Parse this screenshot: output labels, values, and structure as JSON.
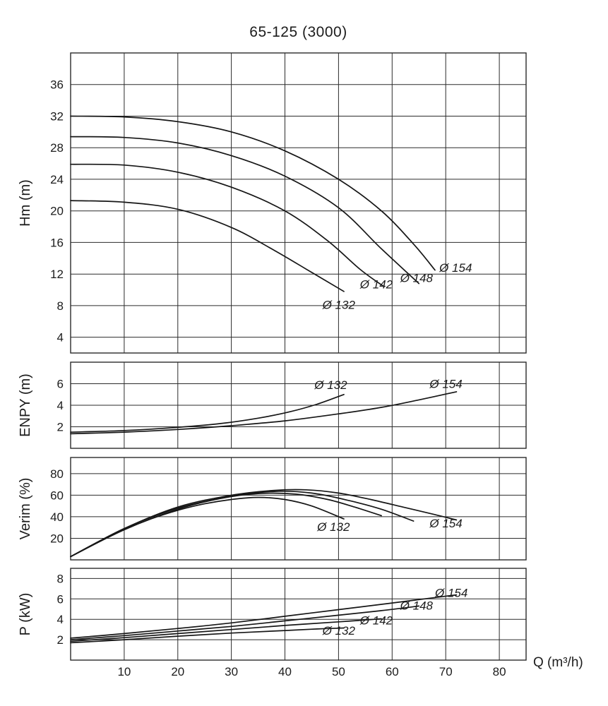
{
  "title": "65-125 (3000)",
  "x_axis": {
    "unit_label": "Q (m³/h)",
    "ticks": [
      10,
      20,
      30,
      40,
      50,
      60,
      70,
      80
    ],
    "range": [
      0,
      85
    ]
  },
  "style": {
    "background": "#ffffff",
    "curve_color": "#161616",
    "grid_color": "#2b2b2b",
    "text_color": "#1c1c1c"
  },
  "chart_data": [
    {
      "id": "head",
      "type": "line",
      "ylabel": "Hm (m)",
      "ylim": [
        2,
        40
      ],
      "yticks": [
        4,
        8,
        12,
        16,
        20,
        24,
        28,
        32,
        36
      ],
      "grid": true,
      "series": [
        {
          "name": "Ø 154",
          "points": [
            [
              0,
              32
            ],
            [
              10,
              31.9
            ],
            [
              20,
              31.3
            ],
            [
              30,
              30
            ],
            [
              40,
              27.6
            ],
            [
              50,
              24
            ],
            [
              58,
              20
            ],
            [
              64,
              15.8
            ],
            [
              68,
              12.5
            ]
          ],
          "label_at": [
            68.8,
            12.3
          ]
        },
        {
          "name": "Ø 148",
          "points": [
            [
              0,
              29.4
            ],
            [
              10,
              29.3
            ],
            [
              20,
              28.6
            ],
            [
              30,
              27
            ],
            [
              40,
              24.4
            ],
            [
              50,
              20.4
            ],
            [
              58,
              15.2
            ],
            [
              65,
              10.8
            ]
          ],
          "label_at": [
            61.5,
            11.0
          ]
        },
        {
          "name": "Ø 142",
          "points": [
            [
              0,
              25.9
            ],
            [
              10,
              25.8
            ],
            [
              20,
              24.9
            ],
            [
              30,
              23
            ],
            [
              40,
              20
            ],
            [
              48,
              16.2
            ],
            [
              54,
              12.6
            ],
            [
              58.5,
              10.4
            ]
          ],
          "label_at": [
            54,
            10.2
          ]
        },
        {
          "name": "Ø 132",
          "points": [
            [
              0,
              21.3
            ],
            [
              10,
              21.1
            ],
            [
              20,
              20.2
            ],
            [
              30,
              17.9
            ],
            [
              38,
              15
            ],
            [
              45,
              12.2
            ],
            [
              51,
              9.8
            ]
          ],
          "label_at": [
            47,
            7.6
          ]
        }
      ]
    },
    {
      "id": "npsh",
      "type": "line",
      "ylabel": "ENPY (m)",
      "ylim": [
        0,
        8
      ],
      "yticks": [
        2,
        4,
        6
      ],
      "grid": true,
      "series": [
        {
          "name": "Ø 132",
          "points": [
            [
              0,
              1.5
            ],
            [
              10,
              1.65
            ],
            [
              20,
              1.95
            ],
            [
              28,
              2.3
            ],
            [
              35,
              2.8
            ],
            [
              41,
              3.4
            ],
            [
              46,
              4.1
            ],
            [
              51,
              5.0
            ]
          ],
          "label_at": [
            45.5,
            5.5
          ]
        },
        {
          "name": "Ø 154",
          "points": [
            [
              0,
              1.35
            ],
            [
              10,
              1.5
            ],
            [
              20,
              1.75
            ],
            [
              30,
              2.1
            ],
            [
              40,
              2.55
            ],
            [
              50,
              3.2
            ],
            [
              58,
              3.8
            ],
            [
              65,
              4.5
            ],
            [
              72,
              5.25
            ]
          ],
          "label_at": [
            67,
            5.6
          ]
        }
      ]
    },
    {
      "id": "efficiency",
      "type": "line",
      "ylabel": "Verim (%)",
      "ylim": [
        0,
        95
      ],
      "yticks": [
        20,
        40,
        60,
        80
      ],
      "grid": true,
      "series": [
        {
          "name": "Ø 154",
          "points": [
            [
              0,
              3
            ],
            [
              10,
              29
            ],
            [
              20,
              49
            ],
            [
              30,
              60
            ],
            [
              38,
              64.5
            ],
            [
              44,
              65
            ],
            [
              50,
              62
            ],
            [
              56,
              56
            ],
            [
              62,
              49
            ],
            [
              68,
              42
            ],
            [
              72,
              37
            ]
          ],
          "label_at": [
            67,
            30
          ]
        },
        {
          "name": "Ø 148",
          "points": [
            [
              0,
              3
            ],
            [
              10,
              29
            ],
            [
              20,
              48
            ],
            [
              30,
              59
            ],
            [
              38,
              63.5
            ],
            [
              45,
              62
            ],
            [
              52,
              55
            ],
            [
              58,
              47
            ],
            [
              64,
              36
            ]
          ]
        },
        {
          "name": "Ø 142",
          "points": [
            [
              0,
              3
            ],
            [
              10,
              28
            ],
            [
              20,
              47
            ],
            [
              28,
              57
            ],
            [
              35,
              61.5
            ],
            [
              42,
              61
            ],
            [
              48,
              56
            ],
            [
              53,
              49
            ],
            [
              58,
              41
            ]
          ]
        },
        {
          "name": "Ø 132",
          "points": [
            [
              0,
              3
            ],
            [
              5,
              16
            ],
            [
              10,
              28
            ],
            [
              15,
              38
            ],
            [
              20,
              46
            ],
            [
              25,
              52
            ],
            [
              30,
              56
            ],
            [
              35,
              58
            ],
            [
              40,
              56
            ],
            [
              45,
              50
            ],
            [
              51,
              38
            ]
          ],
          "label_at": [
            46,
            27
          ]
        }
      ]
    },
    {
      "id": "power",
      "type": "line",
      "ylabel": "P (kW)",
      "ylim": [
        0,
        9
      ],
      "yticks": [
        2,
        4,
        6,
        8
      ],
      "grid": true,
      "series": [
        {
          "name": "Ø 154",
          "points": [
            [
              0,
              2.15
            ],
            [
              10,
              2.6
            ],
            [
              20,
              3.1
            ],
            [
              30,
              3.65
            ],
            [
              40,
              4.3
            ],
            [
              50,
              4.95
            ],
            [
              60,
              5.6
            ],
            [
              66,
              6.0
            ],
            [
              72,
              6.4
            ]
          ],
          "label_at": [
            68,
            6.2
          ]
        },
        {
          "name": "Ø 148",
          "points": [
            [
              0,
              2.0
            ],
            [
              10,
              2.4
            ],
            [
              20,
              2.85
            ],
            [
              30,
              3.3
            ],
            [
              40,
              3.85
            ],
            [
              50,
              4.4
            ],
            [
              58,
              4.85
            ],
            [
              65,
              5.3
            ]
          ],
          "label_at": [
            61.5,
            4.95
          ]
        },
        {
          "name": "Ø 142",
          "points": [
            [
              0,
              1.85
            ],
            [
              10,
              2.2
            ],
            [
              20,
              2.6
            ],
            [
              30,
              3.0
            ],
            [
              40,
              3.4
            ],
            [
              50,
              3.75
            ],
            [
              58,
              4.05
            ]
          ],
          "label_at": [
            54,
            3.5
          ]
        },
        {
          "name": "Ø 132",
          "points": [
            [
              0,
              1.7
            ],
            [
              10,
              2.0
            ],
            [
              20,
              2.35
            ],
            [
              30,
              2.65
            ],
            [
              40,
              2.9
            ],
            [
              46,
              3.05
            ],
            [
              51,
              3.15
            ]
          ],
          "label_at": [
            47,
            2.5
          ]
        }
      ]
    }
  ]
}
